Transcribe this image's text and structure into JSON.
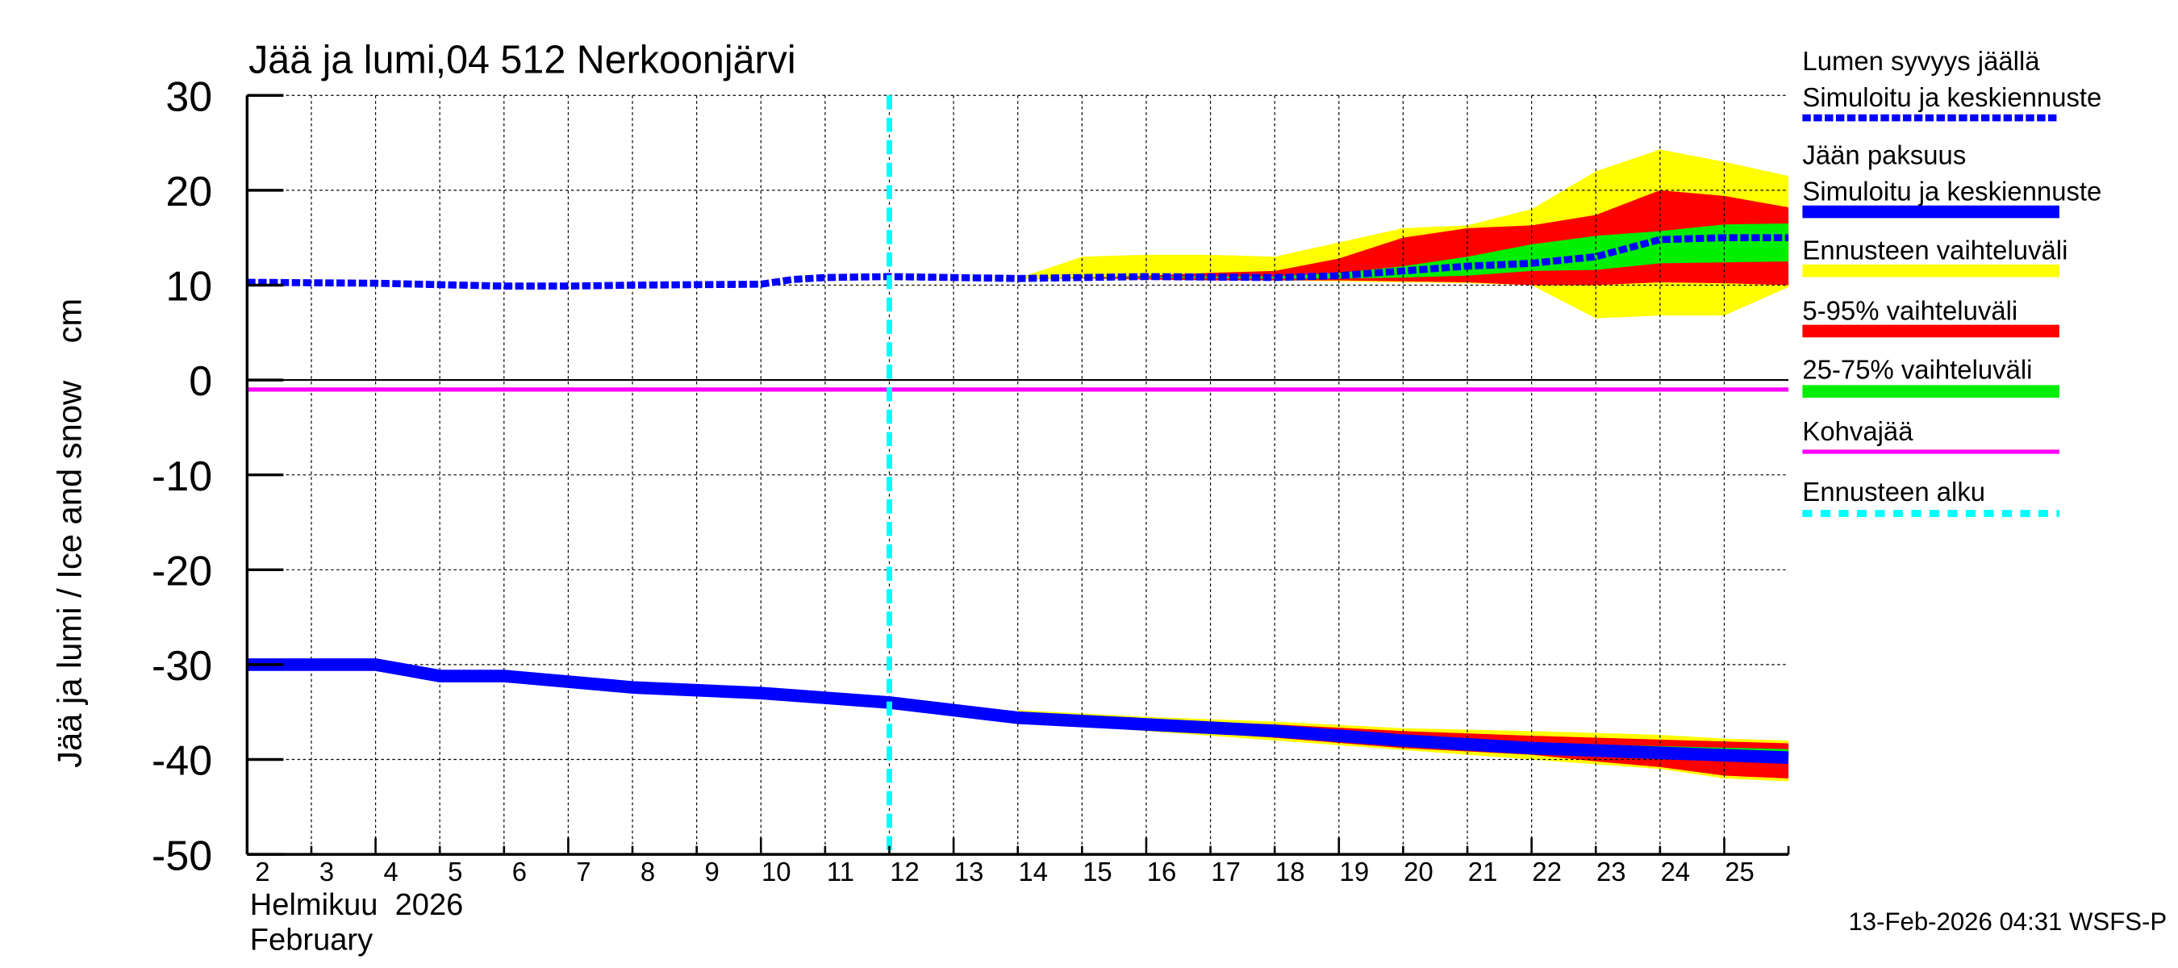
{
  "chart_data": {
    "type": "line",
    "title": "Jää ja lumi,04 512 Nerkoonjärvi",
    "ylabel": "Jää ja lumi / Ice and snow    cm",
    "xlabel_month": "Helmikuu  2026",
    "xlabel_month_en": "February",
    "ylim": [
      -50,
      30
    ],
    "xlim": [
      2,
      26
    ],
    "yticks": [
      "30",
      "20",
      "10",
      "0",
      "-10",
      "-20",
      "-30",
      "-40",
      "-50"
    ],
    "xticks": [
      "2",
      "3",
      "4",
      "5",
      "6",
      "7",
      "8",
      "9",
      "10",
      "11",
      "12",
      "13",
      "14",
      "15",
      "16",
      "17",
      "18",
      "19",
      "20",
      "21",
      "22",
      "23",
      "24",
      "25"
    ],
    "grid": true,
    "forecast_start_day": 12,
    "footer": "13-Feb-2026 04:31 WSFS-P",
    "colors": {
      "snow": "#0000ff",
      "ice": "#0000ff",
      "range": "#ffff00",
      "p5_95": "#ff0000",
      "p25_75": "#00ee00",
      "kohva": "#ff00ff",
      "forecast_start": "#00ffff"
    },
    "legend": [
      {
        "label1": "Lumen syvyys jäällä",
        "label2": "Simuloitu ja keskiennuste",
        "style": "dashed",
        "color": "#0000ff"
      },
      {
        "label1": "Jään paksuus",
        "label2": "Simuloitu ja keskiennuste",
        "style": "solid",
        "color": "#0000ff"
      },
      {
        "label1": "Ennusteen vaihteluväli",
        "style": "band",
        "color": "#ffff00"
      },
      {
        "label1": "5-95% vaihteluväli",
        "style": "band",
        "color": "#ff0000"
      },
      {
        "label1": "25-75% vaihteluväli",
        "style": "band",
        "color": "#00ee00"
      },
      {
        "label1": "Kohvajää",
        "style": "thin",
        "color": "#ff00ff"
      },
      {
        "label1": "Ennusteen alku",
        "style": "dotted",
        "color": "#00ffff"
      }
    ],
    "snow_mean": {
      "x": [
        2,
        4,
        6,
        7,
        8,
        10,
        10.5,
        11,
        12,
        14,
        16,
        18,
        19,
        20,
        21,
        22,
        23,
        24,
        25,
        26
      ],
      "y": [
        10.3,
        10.2,
        9.9,
        9.9,
        10,
        10.1,
        10.6,
        10.8,
        10.9,
        10.7,
        10.9,
        10.8,
        11,
        11.5,
        12,
        12.3,
        13,
        14.8,
        15,
        15
      ]
    },
    "snow_range": {
      "x": [
        14,
        15,
        16,
        17,
        18,
        19,
        20,
        21,
        22,
        23,
        24,
        25,
        26
      ],
      "upper": [
        10.7,
        13,
        13.2,
        13.2,
        13,
        14.5,
        16,
        16.3,
        18,
        22,
        24.3,
        23,
        21.5
      ],
      "lower": [
        10.7,
        10.7,
        10.7,
        10.6,
        10.5,
        10.4,
        10.3,
        10.2,
        10,
        6.5,
        6.8,
        6.8,
        9.8
      ]
    },
    "snow_p5_95": {
      "x": [
        14,
        15,
        16,
        17,
        18,
        19,
        20,
        21,
        22,
        23,
        24,
        25,
        26
      ],
      "upper": [
        10.7,
        10.8,
        11,
        11.3,
        11.5,
        12.8,
        15,
        16,
        16.3,
        17.4,
        20,
        19.4,
        18.2
      ],
      "lower": [
        10.7,
        10.7,
        10.6,
        10.5,
        10.5,
        10.5,
        10.4,
        10.3,
        10,
        10,
        10.3,
        10.2,
        10
      ]
    },
    "snow_p25_75": {
      "x": [
        14,
        16,
        18,
        19,
        20,
        21,
        22,
        23,
        24,
        25,
        26
      ],
      "upper": [
        10.7,
        10.9,
        10.9,
        11.3,
        12,
        13,
        14.3,
        15.2,
        15.7,
        16.4,
        16.5
      ],
      "lower": [
        10.7,
        10.8,
        10.7,
        10.7,
        10.8,
        11,
        11.5,
        11.6,
        12.3,
        12.4,
        12.5
      ]
    },
    "ice_mean": {
      "x": [
        2,
        4,
        5,
        6,
        8,
        10,
        12,
        13,
        14,
        16,
        18,
        20,
        22,
        24,
        26
      ],
      "y": [
        -30,
        -30,
        -31.2,
        -31.2,
        -32.4,
        -33,
        -34,
        -34.8,
        -35.6,
        -36.3,
        -37,
        -38,
        -38.8,
        -39.3,
        -39.8
      ]
    },
    "ice_range": {
      "x": [
        14,
        16,
        18,
        20,
        22,
        24,
        25,
        26
      ],
      "upper": [
        -34.8,
        -35.5,
        -36,
        -36.7,
        -37,
        -37.4,
        -37.8,
        -38
      ],
      "lower": [
        -35.8,
        -37,
        -38,
        -39,
        -40,
        -41,
        -42,
        -42.3
      ]
    },
    "ice_p5_95": {
      "x": [
        14,
        16,
        18,
        20,
        22,
        23,
        24,
        25,
        26
      ],
      "upper": [
        -35,
        -35.8,
        -36.3,
        -37,
        -37.5,
        -37.7,
        -37.9,
        -38.1,
        -38.3
      ],
      "lower": [
        -35.6,
        -36.8,
        -37.7,
        -38.8,
        -39.5,
        -40.2,
        -40.8,
        -41.7,
        -42
      ]
    },
    "ice_p25_75": {
      "x": [
        14,
        16,
        18,
        20,
        22,
        24,
        26
      ],
      "upper": [
        -35.4,
        -36,
        -36.6,
        -37.5,
        -38.2,
        -38.6,
        -38.9
      ],
      "lower": [
        -35.8,
        -36.6,
        -37.4,
        -38.4,
        -39.2,
        -39.8,
        -40.4
      ]
    },
    "kohva": {
      "y": -1
    }
  }
}
